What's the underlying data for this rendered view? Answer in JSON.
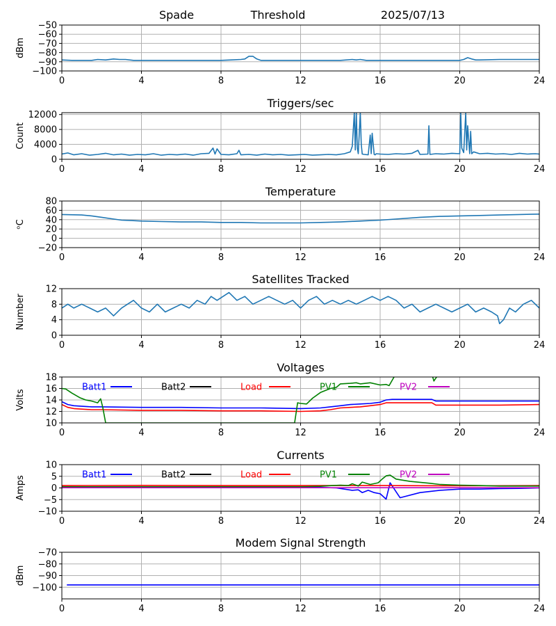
{
  "header": {
    "station": "Spade",
    "mode": "Threshold",
    "date": "2025/07/13"
  },
  "colors": {
    "default": "#1f77b4",
    "grid": "#b0b0b0",
    "batt1": "#0000ff",
    "batt2": "#000000",
    "load": "#ff0000",
    "pv1": "#008000",
    "pv2": "#bf00bf"
  },
  "x_ticks": [
    "0",
    "4",
    "8",
    "12",
    "16",
    "20",
    "24"
  ],
  "chart_data": [
    {
      "id": "noise",
      "type": "line",
      "title": "",
      "xlabel": "",
      "ylabel": "dBm",
      "xlim": [
        0,
        24
      ],
      "ylim": [
        -100,
        -50
      ],
      "yticks": [
        -100,
        -90,
        -80,
        -70,
        -60,
        -50
      ],
      "ytick_labels": [
        "−100",
        "−90",
        "−80",
        "−70",
        "−60",
        "−50"
      ],
      "grid": true,
      "legend": null,
      "series": [
        {
          "name": "",
          "color": "default",
          "x": [
            0,
            0.5,
            1,
            1.5,
            1.8,
            2.2,
            2.6,
            2.9,
            3.2,
            3.6,
            4,
            5,
            6,
            7,
            8,
            8.5,
            9,
            9.2,
            9.4,
            9.6,
            9.8,
            10,
            10.5,
            11,
            12,
            13,
            14,
            14.6,
            14.8,
            15,
            15.3,
            15.6,
            16,
            17,
            18,
            19,
            20,
            20.2,
            20.4,
            20.6,
            20.8,
            21,
            22,
            23,
            24
          ],
          "y": [
            -88,
            -88.5,
            -88.5,
            -88.5,
            -87.5,
            -88,
            -87,
            -87.5,
            -87.5,
            -88.5,
            -88.5,
            -88.5,
            -88.5,
            -88.5,
            -88.5,
            -88,
            -87.5,
            -87,
            -84,
            -84,
            -87,
            -88.5,
            -88.5,
            -88.5,
            -88.5,
            -88.5,
            -88.5,
            -87.5,
            -88,
            -87.5,
            -88.5,
            -88.5,
            -88.5,
            -88.5,
            -88.5,
            -88.5,
            -88.5,
            -87.5,
            -85.5,
            -87,
            -88,
            -88,
            -87.5,
            -87.5,
            -87.5
          ]
        }
      ]
    },
    {
      "id": "triggers",
      "type": "line",
      "title": "Triggers/sec",
      "xlabel": "",
      "ylabel": "Count",
      "xlim": [
        0,
        24
      ],
      "ylim": [
        0,
        12500
      ],
      "yticks": [
        0,
        4000,
        8000,
        12000
      ],
      "ytick_labels": [
        "0",
        "4000",
        "8000",
        "12000"
      ],
      "grid": true,
      "legend": null,
      "series": [
        {
          "name": "",
          "color": "default",
          "x": [
            0,
            0.3,
            0.6,
            1.0,
            1.4,
            1.8,
            2.2,
            2.6,
            3.0,
            3.4,
            3.8,
            4.2,
            4.6,
            5.0,
            5.4,
            5.8,
            6.2,
            6.6,
            7.0,
            7.4,
            7.6,
            7.7,
            7.8,
            8.0,
            8.4,
            8.8,
            8.9,
            9.0,
            9.4,
            9.8,
            10.2,
            10.6,
            11.0,
            11.4,
            11.8,
            12.2,
            12.6,
            13.0,
            13.4,
            13.8,
            14.2,
            14.5,
            14.6,
            14.7,
            14.75,
            14.8,
            14.85,
            14.9,
            15.0,
            15.05,
            15.1,
            15.2,
            15.4,
            15.5,
            15.55,
            15.6,
            15.7,
            15.75,
            15.8,
            16.0,
            16.4,
            16.8,
            17.2,
            17.6,
            17.9,
            18.0,
            18.4,
            18.45,
            18.5,
            18.8,
            19.2,
            19.6,
            20.0,
            20.05,
            20.1,
            20.2,
            20.3,
            20.35,
            20.4,
            20.5,
            20.55,
            20.6,
            20.7,
            21.0,
            21.4,
            21.8,
            22.2,
            22.6,
            23.0,
            23.4,
            23.8,
            24
          ],
          "y": [
            1400,
            1700,
            1200,
            1500,
            1100,
            1300,
            1600,
            1200,
            1400,
            1100,
            1300,
            1200,
            1500,
            1100,
            1300,
            1200,
            1400,
            1100,
            1500,
            1600,
            3000,
            1400,
            2800,
            1300,
            1200,
            1500,
            2400,
            1200,
            1300,
            1100,
            1400,
            1200,
            1300,
            1100,
            1200,
            1300,
            1100,
            1200,
            1300,
            1200,
            1500,
            2000,
            3500,
            12500,
            2500,
            12500,
            3000,
            1500,
            12500,
            4000,
            1400,
            1300,
            1200,
            6500,
            1500,
            7000,
            1300,
            1200,
            1500,
            1400,
            1300,
            1500,
            1400,
            1600,
            2400,
            1300,
            1400,
            9000,
            1300,
            1500,
            1400,
            1600,
            1500,
            12500,
            3000,
            1800,
            12500,
            2500,
            9000,
            1500,
            7500,
            1500,
            2000,
            1500,
            1600,
            1400,
            1500,
            1300,
            1600,
            1400,
            1500,
            1400
          ]
        }
      ]
    },
    {
      "id": "temperature",
      "type": "line",
      "title": "Temperature",
      "xlabel": "",
      "ylabel": "ᵒC",
      "xlim": [
        0,
        24
      ],
      "ylim": [
        -20,
        80
      ],
      "yticks": [
        -20,
        0,
        20,
        40,
        60,
        80
      ],
      "ytick_labels": [
        "−20",
        "0",
        "20",
        "40",
        "60",
        "80"
      ],
      "grid": true,
      "legend": null,
      "series": [
        {
          "name": "",
          "color": "default",
          "x": [
            0,
            1,
            1.5,
            2,
            2.5,
            3,
            3.5,
            4,
            5,
            6,
            7,
            8,
            9,
            10,
            11,
            12,
            13,
            14,
            15,
            16,
            17,
            18,
            19,
            20,
            21,
            22,
            23,
            24
          ],
          "y": [
            51,
            50,
            48,
            45,
            42,
            39,
            38,
            37,
            36,
            35,
            35,
            34,
            34,
            33,
            33,
            33,
            34,
            35,
            37,
            39,
            42,
            45,
            47,
            48,
            49,
            50,
            51,
            52
          ]
        }
      ]
    },
    {
      "id": "satellites",
      "type": "line",
      "title": "Satellites Tracked",
      "xlabel": "",
      "ylabel": "Number",
      "xlim": [
        0,
        24
      ],
      "ylim": [
        0,
        12
      ],
      "yticks": [
        0,
        4,
        8,
        12
      ],
      "ytick_labels": [
        "0",
        "4",
        "8",
        "12"
      ],
      "grid": true,
      "legend": null,
      "series": [
        {
          "name": "",
          "color": "default",
          "x": [
            0,
            0.3,
            0.6,
            1.0,
            1.4,
            1.8,
            2.2,
            2.6,
            3.0,
            3.3,
            3.6,
            4.0,
            4.4,
            4.8,
            5.2,
            5.6,
            6.0,
            6.4,
            6.8,
            7.2,
            7.5,
            7.8,
            8.1,
            8.4,
            8.8,
            9.2,
            9.6,
            10.0,
            10.4,
            10.8,
            11.2,
            11.6,
            12.0,
            12.4,
            12.8,
            13.2,
            13.6,
            14.0,
            14.4,
            14.8,
            15.2,
            15.6,
            16.0,
            16.4,
            16.8,
            17.2,
            17.6,
            18.0,
            18.4,
            18.8,
            19.2,
            19.6,
            20.0,
            20.4,
            20.8,
            21.2,
            21.6,
            21.9,
            22.0,
            22.2,
            22.5,
            22.8,
            23.2,
            23.6,
            24
          ],
          "y": [
            7,
            8,
            7,
            8,
            7,
            6,
            7,
            5,
            7,
            8,
            9,
            7,
            6,
            8,
            6,
            7,
            8,
            7,
            9,
            8,
            10,
            9,
            10,
            11,
            9,
            10,
            8,
            9,
            10,
            9,
            8,
            9,
            7,
            9,
            10,
            8,
            9,
            8,
            9,
            8,
            9,
            10,
            9,
            10,
            9,
            7,
            8,
            6,
            7,
            8,
            7,
            6,
            7,
            8,
            6,
            7,
            6,
            5,
            3,
            4,
            7,
            6,
            8,
            9,
            7
          ]
        }
      ]
    },
    {
      "id": "voltages",
      "type": "line",
      "title": "Voltages",
      "xlabel": "",
      "ylabel": "Volts",
      "xlim": [
        0,
        24
      ],
      "ylim": [
        10,
        18
      ],
      "yticks": [
        10,
        12,
        14,
        16,
        18
      ],
      "ytick_labels": [
        "10",
        "12",
        "14",
        "16",
        "18"
      ],
      "grid": true,
      "legend": "top",
      "series": [
        {
          "name": "Batt1",
          "color": "batt1",
          "x": [
            0,
            0.3,
            0.6,
            1.0,
            1.5,
            2,
            4,
            6,
            8,
            10,
            12,
            13,
            13.5,
            14,
            14.5,
            15,
            15.5,
            16,
            16.3,
            16.6,
            17,
            18,
            18.6,
            18.8,
            19,
            20,
            22,
            24
          ],
          "y": [
            13.7,
            13.2,
            13.0,
            12.9,
            12.8,
            12.8,
            12.7,
            12.7,
            12.6,
            12.6,
            12.5,
            12.6,
            12.8,
            13.0,
            13.2,
            13.3,
            13.4,
            13.6,
            14.0,
            14.1,
            14.1,
            14.1,
            14.1,
            13.8,
            13.8,
            13.8,
            13.8,
            13.8
          ]
        },
        {
          "name": "Batt2",
          "color": "batt2",
          "x": [],
          "y": []
        },
        {
          "name": "Load",
          "color": "load",
          "x": [
            0,
            0.3,
            0.6,
            1.0,
            1.5,
            2,
            4,
            6,
            8,
            10,
            12,
            13,
            13.5,
            14,
            14.5,
            15,
            15.5,
            16,
            16.3,
            16.6,
            17,
            18,
            18.6,
            18.8,
            19,
            20,
            22,
            24
          ],
          "y": [
            13.2,
            12.7,
            12.5,
            12.4,
            12.3,
            12.3,
            12.2,
            12.2,
            12.1,
            12.1,
            12.0,
            12.1,
            12.3,
            12.6,
            12.7,
            12.8,
            13.0,
            13.2,
            13.5,
            13.5,
            13.5,
            13.5,
            13.5,
            13.1,
            13.1,
            13.1,
            13.1,
            13.2
          ]
        },
        {
          "name": "PV1",
          "color": "pv1",
          "x": [
            0,
            0.2,
            0.5,
            0.9,
            1.2,
            1.5,
            1.8,
            1.95,
            2.05,
            2.2,
            11.7,
            11.85,
            12.0,
            12.3,
            12.6,
            13.0,
            13.5,
            13.8,
            14.0,
            14.5,
            14.8,
            15.0,
            15.5,
            16.0,
            16.3,
            16.45,
            16.7,
            17.0,
            18.6,
            18.7,
            18.8,
            18.95
          ],
          "y": [
            16.0,
            15.9,
            15.2,
            14.4,
            14.0,
            13.8,
            13.5,
            14.2,
            12.8,
            10.0,
            10.0,
            13.5,
            13.4,
            13.3,
            14.3,
            15.3,
            16.0,
            16.2,
            16.8,
            16.9,
            17.0,
            16.8,
            17.0,
            16.6,
            16.7,
            16.5,
            18.0,
            18.5,
            18.5,
            17.3,
            17.8,
            18.5
          ]
        },
        {
          "name": "PV2",
          "color": "pv2",
          "x": [],
          "y": []
        }
      ]
    },
    {
      "id": "currents",
      "type": "line",
      "title": "Currents",
      "xlabel": "",
      "ylabel": "Amps",
      "xlim": [
        0,
        24
      ],
      "ylim": [
        -10,
        10
      ],
      "yticks": [
        -10,
        -5,
        0,
        5,
        10
      ],
      "ytick_labels": [
        "−10",
        "−5",
        "0",
        "5",
        "10"
      ],
      "grid": true,
      "legend": "top",
      "series": [
        {
          "name": "Batt1",
          "color": "batt1",
          "x": [
            0,
            0.5,
            1,
            4,
            8,
            12,
            13,
            13.8,
            14.2,
            14.6,
            14.9,
            15.1,
            15.4,
            15.7,
            16.0,
            16.3,
            16.5,
            17,
            18,
            19,
            20,
            21,
            22,
            23,
            24
          ],
          "y": [
            0,
            0.5,
            0.4,
            0.3,
            0.3,
            0.3,
            0.2,
            0,
            -0.5,
            -1,
            -0.8,
            -2,
            -1,
            -2,
            -2.5,
            -4.8,
            2.2,
            -4.2,
            -2,
            -1,
            -0.5,
            -0.5,
            -0.3,
            -0.2,
            0
          ]
        },
        {
          "name": "Batt2",
          "color": "batt2",
          "x": [],
          "y": []
        },
        {
          "name": "Load",
          "color": "load",
          "x": [
            0,
            4,
            8,
            12,
            16,
            20,
            24
          ],
          "y": [
            1.0,
            1.1,
            1.0,
            1.0,
            1.0,
            0.9,
            1.0
          ]
        },
        {
          "name": "PV1",
          "color": "pv1",
          "x": [
            0,
            4,
            8,
            12,
            13,
            13.6,
            14.0,
            14.4,
            14.6,
            14.9,
            15.1,
            15.5,
            15.9,
            16.1,
            16.3,
            16.5,
            16.8,
            17.5,
            18.5,
            19,
            20,
            21,
            22,
            23,
            24
          ],
          "y": [
            0.5,
            0.5,
            0.5,
            0.5,
            0.7,
            1.0,
            1.2,
            1.0,
            1.8,
            0.8,
            2.5,
            1.5,
            2.2,
            3.8,
            5.2,
            5.5,
            3.8,
            2.8,
            2.0,
            1.5,
            1.2,
            1.0,
            0.8,
            0.8,
            0.8
          ]
        },
        {
          "name": "PV2",
          "color": "pv2",
          "x": [
            0,
            4,
            8,
            12,
            16,
            20,
            24
          ],
          "y": [
            0.1,
            0.1,
            0.1,
            0.1,
            0.1,
            0.1,
            0.1
          ]
        }
      ]
    },
    {
      "id": "modem",
      "type": "line",
      "title": "Modem Signal Strength",
      "xlabel": "",
      "ylabel": "dBm",
      "xlim": [
        0,
        24
      ],
      "ylim": [
        -110,
        -70
      ],
      "yticks": [
        -100,
        -90,
        -80,
        -70
      ],
      "ytick_labels": [
        "−100",
        "−90",
        "−80",
        "−70"
      ],
      "grid": true,
      "legend": null,
      "series": [
        {
          "name": "",
          "color": "batt1",
          "x": [
            0.25,
            24
          ],
          "y": [
            -98,
            -98
          ]
        }
      ]
    }
  ]
}
